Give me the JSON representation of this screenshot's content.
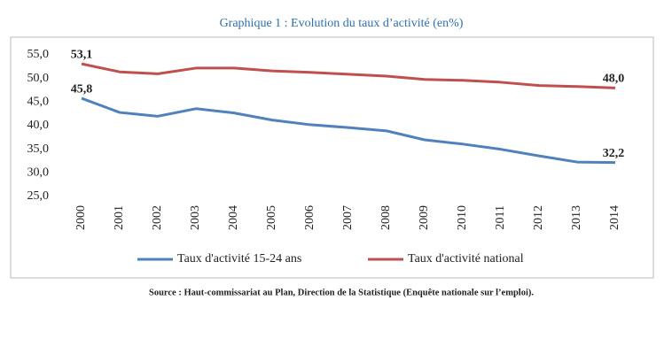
{
  "chart_data": {
    "type": "line",
    "title": "Graphique 1 : Evolution du taux d’activité (en%)",
    "categories": [
      "2000",
      "2001",
      "2002",
      "2003",
      "2004",
      "2005",
      "2006",
      "2007",
      "2008",
      "2009",
      "2010",
      "2011",
      "2012",
      "2013",
      "2014"
    ],
    "series": [
      {
        "name": "Taux d'activité 15-24 ans",
        "color": "#4f81bd",
        "values": [
          45.8,
          42.8,
          42.0,
          43.6,
          42.7,
          41.2,
          40.2,
          39.6,
          38.9,
          37.0,
          36.1,
          35.0,
          33.6,
          32.3,
          32.2
        ],
        "value_labels": [
          "45,8",
          null,
          null,
          null,
          null,
          null,
          null,
          null,
          null,
          null,
          null,
          null,
          null,
          null,
          "32,2"
        ]
      },
      {
        "name": "Taux d'activité national",
        "color": "#c0504d",
        "values": [
          53.1,
          51.4,
          51.0,
          52.2,
          52.2,
          51.6,
          51.3,
          50.9,
          50.5,
          49.8,
          49.6,
          49.2,
          48.5,
          48.3,
          48.0
        ],
        "value_labels": [
          "53,1",
          null,
          null,
          null,
          null,
          null,
          null,
          null,
          null,
          null,
          null,
          null,
          null,
          null,
          "48,0"
        ]
      }
    ],
    "ylim": [
      25,
      55
    ],
    "yticks": [
      {
        "value": 25,
        "label": "25,0"
      },
      {
        "value": 30,
        "label": "30,0"
      },
      {
        "value": 35,
        "label": "35,0"
      },
      {
        "value": 40,
        "label": "40,0"
      },
      {
        "value": 45,
        "label": "45,0"
      },
      {
        "value": 50,
        "label": "50,0"
      },
      {
        "value": 55,
        "label": "55,0"
      }
    ],
    "legend": "bottom",
    "source": "Source : Haut-commissariat au Plan, Direction de la Statistique (Enquête nationale sur l’emploi)."
  }
}
